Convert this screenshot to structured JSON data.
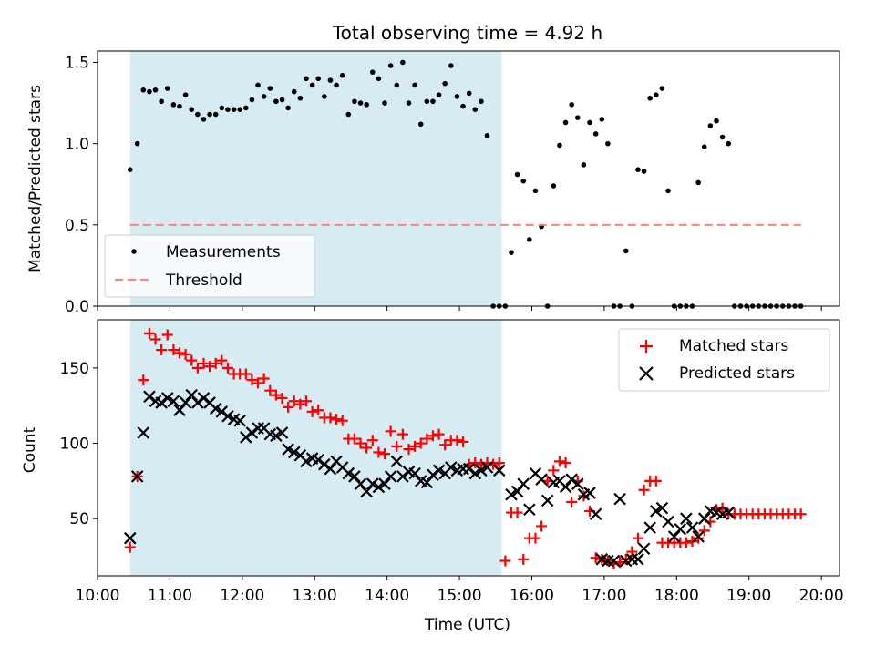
{
  "chart_data": [
    {
      "type": "scatter",
      "title": "Total observing time = 4.92 h",
      "ylabel": "Matched/Predicted stars",
      "xlabel": "",
      "xlim": [
        "10:00",
        "20:15"
      ],
      "ylim": [
        0,
        1.57
      ],
      "xticks": [
        "10:00",
        "11:00",
        "12:00",
        "13:00",
        "14:00",
        "15:00",
        "16:00",
        "17:00",
        "18:00",
        "19:00",
        "20:00"
      ],
      "yticks": [
        "0.0",
        "0.5",
        "1.0",
        "1.5"
      ],
      "highlight_span": [
        "10:27",
        "15:35"
      ],
      "highlight_color": "#add8e6",
      "legend": {
        "position": "lower-left",
        "entries": [
          "Measurements",
          "Threshold"
        ]
      },
      "series": [
        {
          "name": "Measurements",
          "marker": "dot",
          "color": "#000000",
          "x": [
            "10:27",
            "10:33",
            "10:38",
            "10:43",
            "10:48",
            "10:53",
            "10:58",
            "11:03",
            "11:08",
            "11:13",
            "11:18",
            "11:23",
            "11:28",
            "11:33",
            "11:38",
            "11:43",
            "11:48",
            "11:53",
            "11:58",
            "12:03",
            "12:08",
            "12:13",
            "12:18",
            "12:23",
            "12:28",
            "12:33",
            "12:38",
            "12:43",
            "12:48",
            "12:53",
            "12:58",
            "13:03",
            "13:08",
            "13:13",
            "13:18",
            "13:23",
            "13:28",
            "13:33",
            "13:38",
            "13:43",
            "13:48",
            "13:53",
            "13:58",
            "14:03",
            "14:08",
            "14:13",
            "14:18",
            "14:23",
            "14:28",
            "14:33",
            "14:38",
            "14:43",
            "14:48",
            "14:53",
            "14:58",
            "15:03",
            "15:08",
            "15:13",
            "15:18",
            "15:23",
            "15:28",
            "15:33",
            "15:38",
            "15:43",
            "15:48",
            "15:53",
            "15:58",
            "16:03",
            "16:08",
            "16:13",
            "16:18",
            "16:23",
            "16:28",
            "16:33",
            "16:38",
            "16:43",
            "16:48",
            "16:53",
            "16:58",
            "17:03",
            "17:08",
            "17:13",
            "17:18",
            "17:23",
            "17:28",
            "17:33",
            "17:38",
            "17:43",
            "17:48",
            "17:53",
            "17:58",
            "18:03",
            "18:08",
            "18:13",
            "18:18",
            "18:23",
            "18:28",
            "18:33",
            "18:38",
            "18:43",
            "18:48",
            "18:53",
            "18:58",
            "19:03",
            "19:08",
            "19:13",
            "19:18",
            "19:23",
            "19:28",
            "19:33",
            "19:38",
            "19:43"
          ],
          "y": [
            0.84,
            1.0,
            1.33,
            1.32,
            1.33,
            1.26,
            1.34,
            1.24,
            1.23,
            1.3,
            1.21,
            1.18,
            1.15,
            1.18,
            1.18,
            1.22,
            1.21,
            1.21,
            1.21,
            1.22,
            1.27,
            1.36,
            1.29,
            1.34,
            1.26,
            1.27,
            1.22,
            1.32,
            1.28,
            1.4,
            1.36,
            1.4,
            1.29,
            1.39,
            1.36,
            1.42,
            1.18,
            1.26,
            1.25,
            1.24,
            1.44,
            1.4,
            1.25,
            1.48,
            1.36,
            1.5,
            1.25,
            1.36,
            1.12,
            1.26,
            1.26,
            1.3,
            1.37,
            1.48,
            1.29,
            1.23,
            1.31,
            1.21,
            1.26,
            1.05,
            0.0,
            0.0,
            0.0,
            0.33,
            0.81,
            0.77,
            0.41,
            0.71,
            0.49,
            0.0,
            0.74,
            0.99,
            1.13,
            1.24,
            1.16,
            0.87,
            1.13,
            1.06,
            1.15,
            1.0,
            0.0,
            0.0,
            0.34,
            0.0,
            0.84,
            0.83,
            1.28,
            1.3,
            1.34,
            0.71,
            0.0,
            0.0,
            0.0,
            0.0,
            0.76,
            0.98,
            1.11,
            1.14,
            1.04,
            1.0,
            0.0,
            0.0,
            0.0,
            0.0,
            0.0,
            0.0,
            0.0,
            0.0,
            0.0,
            0.0,
            0.0,
            0.0
          ]
        },
        {
          "name": "Threshold",
          "marker": "dashed-line",
          "color": "#ff7f7f",
          "x": [
            "10:27",
            "19:43"
          ],
          "y": [
            0.5,
            0.5
          ]
        }
      ]
    },
    {
      "type": "scatter",
      "title": "",
      "xlabel": "Time (UTC)",
      "ylabel": "Count",
      "xlim": [
        "10:00",
        "20:15"
      ],
      "ylim": [
        12,
        182
      ],
      "xticks": [
        "10:00",
        "11:00",
        "12:00",
        "13:00",
        "14:00",
        "15:00",
        "16:00",
        "17:00",
        "18:00",
        "19:00",
        "20:00"
      ],
      "yticks": [
        "50",
        "100",
        "150"
      ],
      "highlight_span": [
        "10:27",
        "15:35"
      ],
      "highlight_color": "#add8e6",
      "legend": {
        "position": "top-right",
        "entries": [
          "Matched stars",
          "Predicted stars"
        ]
      },
      "series": [
        {
          "name": "Matched stars",
          "marker": "plus",
          "color": "#ff0000",
          "x": [
            "10:27",
            "10:33",
            "10:38",
            "10:43",
            "10:48",
            "10:53",
            "10:58",
            "11:03",
            "11:08",
            "11:13",
            "11:18",
            "11:23",
            "11:28",
            "11:33",
            "11:38",
            "11:43",
            "11:48",
            "11:53",
            "11:58",
            "12:03",
            "12:08",
            "12:13",
            "12:18",
            "12:23",
            "12:28",
            "12:33",
            "12:38",
            "12:43",
            "12:48",
            "12:53",
            "12:58",
            "13:03",
            "13:08",
            "13:13",
            "13:18",
            "13:23",
            "13:28",
            "13:33",
            "13:38",
            "13:43",
            "13:48",
            "13:53",
            "13:58",
            "14:03",
            "14:08",
            "14:13",
            "14:18",
            "14:23",
            "14:28",
            "14:33",
            "14:38",
            "14:43",
            "14:48",
            "14:53",
            "14:58",
            "15:03",
            "15:08",
            "15:13",
            "15:18",
            "15:23",
            "15:28",
            "15:33",
            "15:38",
            "15:43",
            "15:48",
            "15:53",
            "15:58",
            "16:03",
            "16:08",
            "16:13",
            "16:18",
            "16:23",
            "16:28",
            "16:33",
            "16:38",
            "16:43",
            "16:48",
            "16:53",
            "16:58",
            "17:03",
            "17:08",
            "17:13",
            "17:18",
            "17:23",
            "17:28",
            "17:33",
            "17:38",
            "17:43",
            "17:48",
            "17:53",
            "17:58",
            "18:03",
            "18:08",
            "18:13",
            "18:18",
            "18:23",
            "18:28",
            "18:33",
            "18:38",
            "18:43",
            "18:48",
            "18:53",
            "18:58",
            "19:03",
            "19:08",
            "19:13",
            "19:18",
            "19:23",
            "19:28",
            "19:33",
            "19:38",
            "19:43"
          ],
          "y": [
            31,
            78,
            142,
            173,
            169,
            162,
            172,
            162,
            160,
            159,
            155,
            150,
            153,
            151,
            153,
            155,
            150,
            146,
            146,
            146,
            142,
            140,
            143,
            135,
            132,
            130,
            124,
            128,
            126,
            128,
            121,
            122,
            117,
            117,
            116,
            115,
            103,
            103,
            100,
            97,
            102,
            94,
            93,
            108,
            98,
            106,
            96,
            98,
            100,
            103,
            105,
            106,
            99,
            102,
            102,
            101,
            86,
            87,
            86,
            87,
            86,
            87,
            22,
            54,
            54,
            23,
            37,
            37,
            45,
            75,
            82,
            88,
            87,
            61,
            75,
            65,
            55,
            24,
            23,
            22,
            20,
            21,
            23,
            28,
            37,
            69,
            75,
            75,
            34,
            34,
            34,
            34,
            34,
            35,
            37,
            42,
            48,
            56,
            57,
            53,
            53,
            53,
            53,
            53,
            53,
            53,
            53,
            53,
            53,
            53,
            53,
            53
          ]
        },
        {
          "name": "Predicted stars",
          "marker": "x",
          "color": "#000000",
          "x": [
            "10:27",
            "10:33",
            "10:38",
            "10:43",
            "10:48",
            "10:53",
            "10:58",
            "11:03",
            "11:08",
            "11:13",
            "11:18",
            "11:23",
            "11:28",
            "11:33",
            "11:38",
            "11:43",
            "11:48",
            "11:53",
            "11:58",
            "12:03",
            "12:08",
            "12:13",
            "12:18",
            "12:23",
            "12:28",
            "12:33",
            "12:38",
            "12:43",
            "12:48",
            "12:53",
            "12:58",
            "13:03",
            "13:08",
            "13:13",
            "13:18",
            "13:23",
            "13:28",
            "13:33",
            "13:38",
            "13:43",
            "13:48",
            "13:53",
            "13:58",
            "14:03",
            "14:08",
            "14:13",
            "14:18",
            "14:23",
            "14:28",
            "14:33",
            "14:38",
            "14:43",
            "14:48",
            "14:53",
            "14:58",
            "15:03",
            "15:08",
            "15:13",
            "15:18",
            "15:23",
            "15:33",
            "15:43",
            "15:48",
            "15:53",
            "15:58",
            "16:03",
            "16:08",
            "16:13",
            "16:18",
            "16:23",
            "16:28",
            "16:33",
            "16:38",
            "16:43",
            "16:48",
            "16:53",
            "16:58",
            "17:03",
            "17:08",
            "17:13",
            "17:18",
            "17:23",
            "17:28",
            "17:33",
            "17:38",
            "17:43",
            "17:48",
            "17:53",
            "17:58",
            "18:03",
            "18:08",
            "18:13",
            "18:18",
            "18:23",
            "18:28",
            "18:33",
            "18:38",
            "18:43"
          ],
          "y": [
            37,
            78,
            107,
            131,
            128,
            127,
            130,
            128,
            122,
            127,
            132,
            127,
            130,
            127,
            123,
            121,
            118,
            116,
            115,
            104,
            107,
            110,
            110,
            106,
            105,
            107,
            96,
            94,
            92,
            88,
            90,
            89,
            86,
            83,
            88,
            84,
            80,
            78,
            73,
            68,
            73,
            71,
            73,
            78,
            88,
            78,
            81,
            80,
            75,
            74,
            79,
            82,
            80,
            84,
            82,
            83,
            83,
            80,
            82,
            84,
            82,
            66,
            68,
            73,
            56,
            80,
            76,
            62,
            74,
            75,
            71,
            76,
            73,
            66,
            67,
            53,
            23,
            22,
            22,
            63,
            22,
            23,
            23,
            30,
            44,
            55,
            57,
            48,
            38,
            43,
            50,
            44,
            38,
            50,
            55,
            54,
            53,
            54
          ]
        }
      ]
    }
  ]
}
